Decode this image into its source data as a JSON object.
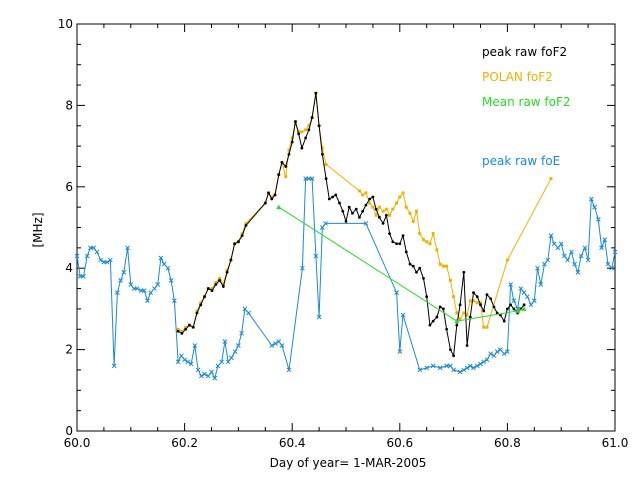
{
  "chart_data": {
    "type": "line",
    "title": "",
    "xlabel": "Day of year= 1-MAR-2005",
    "ylabel": "[MHz]",
    "xlim": [
      60.0,
      61.0
    ],
    "ylim": [
      0,
      10
    ],
    "x_ticks": [
      60.0,
      60.2,
      60.4,
      60.6,
      60.8,
      61.0
    ],
    "x_tick_labels": [
      "60.0",
      "60.2",
      "60.4",
      "60.6",
      "60.8",
      "61.0"
    ],
    "y_ticks": [
      0,
      2,
      4,
      6,
      8,
      10
    ],
    "y_tick_labels": [
      "0",
      "2",
      "4",
      "6",
      "8",
      "10"
    ],
    "grid": false,
    "legend_position": "top-right",
    "series": [
      {
        "name": "peak raw foF2",
        "color": "#000000",
        "x": [
          60.188,
          60.195,
          60.202,
          60.209,
          60.216,
          60.223,
          60.23,
          60.237,
          60.244,
          60.251,
          60.258,
          60.265,
          60.272,
          60.279,
          60.286,
          60.293,
          60.3,
          60.307,
          60.314,
          60.35,
          60.356,
          60.362,
          60.368,
          60.375,
          60.381,
          60.388,
          60.394,
          60.4,
          60.406,
          60.412,
          60.418,
          60.425,
          60.431,
          60.437,
          60.444,
          60.45,
          60.456,
          60.463,
          60.469,
          60.475,
          60.481,
          60.488,
          60.494,
          60.5,
          60.506,
          60.512,
          60.519,
          60.525,
          60.531,
          60.537,
          60.544,
          60.55,
          60.556,
          60.562,
          60.569,
          60.575,
          60.581,
          60.587,
          60.594,
          60.6,
          60.606,
          60.612,
          60.619,
          60.625,
          60.631,
          60.637,
          60.644,
          60.65,
          60.656,
          60.662,
          60.669,
          60.675,
          60.681,
          60.687,
          60.694,
          60.7,
          60.706,
          60.712,
          60.719,
          60.725,
          60.731,
          60.737,
          60.744,
          60.75,
          60.756,
          60.762,
          60.769,
          60.775,
          60.781,
          60.787,
          60.794,
          60.8,
          60.806,
          60.812,
          60.819,
          60.825,
          60.831
        ],
        "y": [
          2.45,
          2.4,
          2.5,
          2.6,
          2.55,
          2.9,
          3.1,
          3.3,
          3.5,
          3.45,
          3.6,
          3.7,
          3.55,
          3.9,
          4.2,
          4.6,
          4.65,
          4.8,
          5.05,
          5.6,
          5.85,
          5.7,
          5.8,
          6.3,
          6.6,
          6.5,
          6.8,
          7.1,
          7.6,
          7.3,
          6.95,
          7.2,
          7.4,
          7.7,
          8.3,
          7.5,
          6.8,
          6.2,
          5.7,
          5.75,
          5.8,
          5.6,
          5.4,
          5.15,
          5.5,
          5.35,
          5.45,
          5.25,
          5.4,
          5.55,
          5.7,
          5.75,
          5.45,
          5.25,
          5.1,
          5.3,
          4.85,
          4.65,
          4.6,
          4.6,
          4.8,
          4.4,
          4.1,
          4.05,
          3.9,
          4.0,
          3.75,
          3.3,
          2.6,
          2.7,
          2.8,
          3.05,
          3.0,
          2.5,
          2.0,
          1.85,
          2.6,
          3.1,
          3.9,
          2.1,
          2.8,
          3.4,
          3.3,
          3.1,
          2.95,
          3.35,
          3.25,
          3.05,
          2.9,
          2.85,
          2.7,
          3.0,
          3.1,
          3.0,
          2.9,
          3.0,
          3.1
        ],
        "marker": "dot"
      },
      {
        "name": "POLAN foF2",
        "color": "#f0b000",
        "x": [
          60.188,
          60.195,
          60.202,
          60.209,
          60.216,
          60.223,
          60.23,
          60.237,
          60.244,
          60.251,
          60.258,
          60.265,
          60.272,
          60.279,
          60.286,
          60.293,
          60.3,
          60.307,
          60.314,
          60.35,
          60.356,
          60.362,
          60.368,
          60.375,
          60.381,
          60.388,
          60.394,
          60.4,
          60.406,
          60.412,
          60.418,
          60.425,
          60.431,
          60.437,
          60.444,
          60.45,
          60.456,
          60.463,
          60.525,
          60.531,
          60.537,
          60.544,
          60.55,
          60.556,
          60.562,
          60.569,
          60.575,
          60.581,
          60.587,
          60.594,
          60.6,
          60.606,
          60.612,
          60.619,
          60.625,
          60.631,
          60.637,
          60.644,
          60.65,
          60.656,
          60.662,
          60.669,
          60.675,
          60.681,
          60.687,
          60.694,
          60.7,
          60.706,
          60.712,
          60.719,
          60.725,
          60.731,
          60.737,
          60.744,
          60.75,
          60.756,
          60.762,
          60.8,
          60.881
        ],
        "y": [
          2.5,
          2.45,
          2.55,
          2.6,
          2.55,
          2.95,
          3.15,
          3.3,
          3.5,
          3.5,
          3.65,
          3.75,
          3.6,
          3.95,
          4.2,
          4.6,
          4.65,
          4.85,
          5.1,
          5.6,
          5.85,
          5.75,
          5.8,
          6.3,
          6.6,
          6.25,
          6.9,
          7.2,
          7.6,
          7.35,
          7.35,
          7.4,
          7.5,
          7.7,
          8.3,
          7.5,
          6.95,
          6.55,
          5.9,
          5.8,
          5.85,
          5.6,
          5.5,
          5.3,
          5.5,
          5.4,
          5.45,
          5.3,
          5.45,
          5.6,
          5.75,
          5.85,
          5.5,
          5.35,
          5.15,
          5.4,
          4.85,
          4.7,
          4.65,
          4.6,
          4.85,
          4.45,
          4.1,
          4.05,
          4.05,
          3.7,
          3.3,
          2.9,
          2.75,
          2.9,
          2.85,
          3.2,
          3.2,
          3.15,
          3.15,
          2.55,
          2.55,
          4.2,
          6.2
        ],
        "marker": "square"
      },
      {
        "name": "Mean raw foF2",
        "color": "#22dd22",
        "x": [
          60.375,
          60.706,
          60.819,
          60.831
        ],
        "y": [
          5.5,
          2.7,
          2.95,
          3.0
        ],
        "marker": "triangle"
      },
      {
        "name": "peak raw foE",
        "color": "#1a8ad6",
        "x": [
          60.0,
          60.006,
          60.012,
          60.019,
          60.025,
          60.031,
          60.037,
          60.044,
          60.05,
          60.056,
          60.062,
          60.069,
          60.075,
          60.081,
          60.087,
          60.094,
          60.1,
          60.106,
          60.112,
          60.119,
          60.125,
          60.131,
          60.137,
          60.144,
          60.15,
          60.156,
          60.162,
          60.169,
          60.175,
          60.181,
          60.188,
          60.194,
          60.2,
          60.206,
          60.212,
          60.219,
          60.225,
          60.231,
          60.237,
          60.244,
          60.25,
          60.256,
          60.262,
          60.269,
          60.275,
          60.281,
          60.287,
          60.294,
          60.3,
          60.306,
          60.312,
          60.319,
          60.362,
          60.369,
          60.375,
          60.381,
          60.394,
          60.419,
          60.425,
          60.431,
          60.437,
          60.444,
          60.45,
          60.456,
          60.462,
          60.537,
          60.594,
          60.6,
          60.606,
          60.637,
          60.65,
          60.662,
          60.675,
          60.687,
          60.694,
          60.7,
          60.712,
          60.719,
          60.725,
          60.731,
          60.737,
          60.744,
          60.75,
          60.756,
          60.762,
          60.769,
          60.775,
          60.781,
          60.787,
          60.794,
          60.8,
          60.806,
          60.812,
          60.819,
          60.825,
          60.831,
          60.837,
          60.844,
          60.85,
          60.856,
          60.862,
          60.869,
          60.875,
          60.881,
          60.887,
          60.894,
          60.9,
          60.906,
          60.912,
          60.919,
          60.925,
          60.931,
          60.937,
          60.944,
          60.95,
          60.956,
          60.962,
          60.969,
          60.975,
          60.981,
          60.987,
          60.994,
          61.0
        ],
        "y": [
          4.3,
          3.8,
          3.8,
          4.3,
          4.5,
          4.5,
          4.4,
          4.2,
          4.15,
          4.15,
          4.2,
          1.6,
          3.4,
          3.7,
          3.9,
          4.5,
          3.6,
          3.5,
          3.5,
          3.45,
          3.45,
          3.2,
          3.4,
          3.5,
          3.6,
          4.25,
          4.1,
          4.0,
          3.7,
          3.2,
          1.7,
          1.85,
          1.75,
          1.7,
          1.65,
          2.1,
          1.5,
          1.35,
          1.4,
          1.35,
          1.45,
          1.3,
          1.6,
          1.7,
          2.2,
          1.7,
          1.8,
          1.95,
          2.1,
          2.4,
          3.0,
          2.9,
          2.1,
          2.15,
          2.2,
          2.1,
          1.5,
          4.0,
          6.2,
          6.2,
          6.2,
          4.3,
          2.8,
          5.0,
          5.1,
          5.1,
          3.4,
          1.95,
          2.85,
          1.5,
          1.55,
          1.6,
          1.55,
          1.6,
          1.6,
          1.5,
          1.45,
          1.5,
          1.55,
          1.6,
          1.55,
          1.6,
          1.65,
          1.7,
          1.75,
          1.9,
          1.85,
          1.95,
          2.0,
          1.9,
          1.95,
          3.6,
          3.2,
          3.0,
          3.5,
          3.4,
          3.3,
          3.1,
          3.2,
          4.0,
          3.6,
          4.1,
          4.2,
          4.8,
          4.6,
          4.5,
          4.6,
          4.3,
          4.2,
          4.4,
          4.1,
          3.9,
          4.3,
          4.5,
          4.2,
          5.7,
          5.5,
          5.2,
          4.5,
          4.7,
          4.1,
          4.0,
          4.4
        ]
      }
    ]
  }
}
